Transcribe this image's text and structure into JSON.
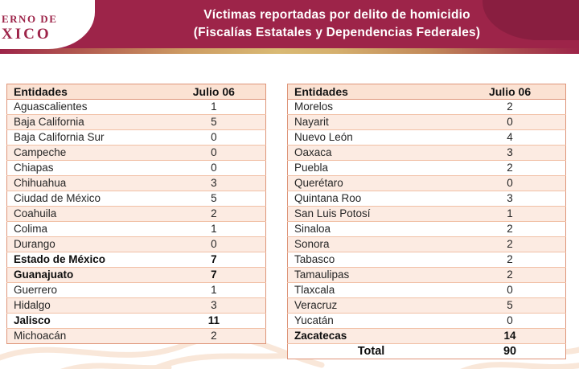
{
  "header": {
    "logo_line1": "ERNO DE",
    "logo_line2": "XICO",
    "title_line1": "Víctimas reportadas por delito de homicidio",
    "title_line2": "(Fiscalías Estatales y Dependencias Federales)"
  },
  "colors": {
    "banner": "#9d2449",
    "gold_accent": "#d9ba74",
    "table_border": "#de9579",
    "row_alt": "#fcebe2",
    "header_row": "#fbe2d3"
  },
  "tables": [
    {
      "id": "left",
      "columns": [
        "Entidades",
        "Julio 06"
      ],
      "rows": [
        {
          "entity": "Aguascalientes",
          "value": "1",
          "bold": false
        },
        {
          "entity": "Baja California",
          "value": "5",
          "bold": false
        },
        {
          "entity": "Baja California Sur",
          "value": "0",
          "bold": false
        },
        {
          "entity": "Campeche",
          "value": "0",
          "bold": false
        },
        {
          "entity": "Chiapas",
          "value": "0",
          "bold": false
        },
        {
          "entity": "Chihuahua",
          "value": "3",
          "bold": false
        },
        {
          "entity": "Ciudad de México",
          "value": "5",
          "bold": false
        },
        {
          "entity": "Coahuila",
          "value": "2",
          "bold": false
        },
        {
          "entity": "Colima",
          "value": "1",
          "bold": false
        },
        {
          "entity": "Durango",
          "value": "0",
          "bold": false
        },
        {
          "entity": "Estado de México",
          "value": "7",
          "bold": true
        },
        {
          "entity": "Guanajuato",
          "value": "7",
          "bold": true
        },
        {
          "entity": "Guerrero",
          "value": "1",
          "bold": false
        },
        {
          "entity": "Hidalgo",
          "value": "3",
          "bold": false
        },
        {
          "entity": "Jalisco",
          "value": "11",
          "bold": true
        },
        {
          "entity": "Michoacán",
          "value": "2",
          "bold": false
        }
      ]
    },
    {
      "id": "right",
      "columns": [
        "Entidades",
        "Julio 06"
      ],
      "rows": [
        {
          "entity": "Morelos",
          "value": "2",
          "bold": false
        },
        {
          "entity": "Nayarit",
          "value": "0",
          "bold": false
        },
        {
          "entity": "Nuevo León",
          "value": "4",
          "bold": false
        },
        {
          "entity": "Oaxaca",
          "value": "3",
          "bold": false
        },
        {
          "entity": "Puebla",
          "value": "2",
          "bold": false
        },
        {
          "entity": "Querétaro",
          "value": "0",
          "bold": false
        },
        {
          "entity": "Quintana Roo",
          "value": "3",
          "bold": false
        },
        {
          "entity": "San Luis Potosí",
          "value": "1",
          "bold": false
        },
        {
          "entity": "Sinaloa",
          "value": "2",
          "bold": false
        },
        {
          "entity": "Sonora",
          "value": "2",
          "bold": false
        },
        {
          "entity": "Tabasco",
          "value": "2",
          "bold": false
        },
        {
          "entity": "Tamaulipas",
          "value": "2",
          "bold": false
        },
        {
          "entity": "Tlaxcala",
          "value": "0",
          "bold": false
        },
        {
          "entity": "Veracruz",
          "value": "5",
          "bold": false
        },
        {
          "entity": "Yucatán",
          "value": "0",
          "bold": false
        },
        {
          "entity": "Zacatecas",
          "value": "14",
          "bold": true
        }
      ],
      "total": {
        "label": "Total",
        "value": "90"
      }
    }
  ]
}
